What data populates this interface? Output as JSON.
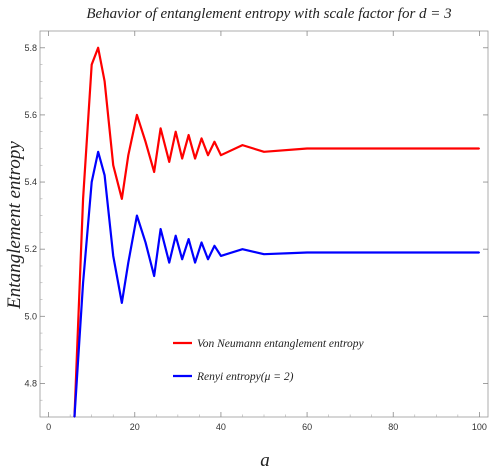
{
  "chart_data": {
    "type": "line",
    "title": "Behavior of entanglement entropy with scale factor for d = 3",
    "xlabel": "a",
    "ylabel": "Entanglement entropy",
    "xlim": [
      -2,
      102
    ],
    "ylim": [
      4.7,
      5.85
    ],
    "x_ticks": [
      0,
      20,
      40,
      60,
      80,
      100
    ],
    "y_ticks": [
      4.8,
      5.0,
      5.2,
      5.4,
      5.6,
      5.8
    ],
    "x_tick_labels": [
      "0",
      "20",
      "40",
      "60",
      "80",
      "100"
    ],
    "y_tick_labels": [
      "4.8",
      "5.0",
      "5.2",
      "5.4",
      "5.6",
      "5.8"
    ],
    "grid": false,
    "legend_position": "bottom-left inside",
    "series": [
      {
        "name": "Von Neumann entanglement entropy",
        "color": "#ff0000",
        "x": [
          6,
          8,
          10,
          11.5,
          13,
          15,
          17,
          18.5,
          20.5,
          22.5,
          24.5,
          26,
          28,
          29.5,
          31,
          32.5,
          34,
          35.5,
          37,
          38.5,
          40,
          45,
          50,
          60,
          70,
          80,
          90,
          100
        ],
        "y": [
          4.7,
          5.35,
          5.75,
          5.8,
          5.7,
          5.45,
          5.35,
          5.48,
          5.6,
          5.52,
          5.43,
          5.56,
          5.46,
          5.55,
          5.47,
          5.54,
          5.47,
          5.53,
          5.48,
          5.52,
          5.48,
          5.51,
          5.49,
          5.5,
          5.5,
          5.5,
          5.5,
          5.5
        ]
      },
      {
        "name": "Renyi entropy(μ = 2)",
        "color": "#0000ff",
        "x": [
          6,
          8,
          10,
          11.5,
          13,
          15,
          17,
          18.5,
          20.5,
          22.5,
          24.5,
          26,
          28,
          29.5,
          31,
          32.5,
          34,
          35.5,
          37,
          38.5,
          40,
          45,
          50,
          60,
          70,
          80,
          90,
          100
        ],
        "y": [
          4.7,
          5.1,
          5.4,
          5.49,
          5.42,
          5.18,
          5.04,
          5.16,
          5.3,
          5.22,
          5.12,
          5.26,
          5.16,
          5.24,
          5.17,
          5.23,
          5.16,
          5.22,
          5.17,
          5.21,
          5.18,
          5.2,
          5.185,
          5.19,
          5.19,
          5.19,
          5.19,
          5.19
        ]
      }
    ]
  }
}
